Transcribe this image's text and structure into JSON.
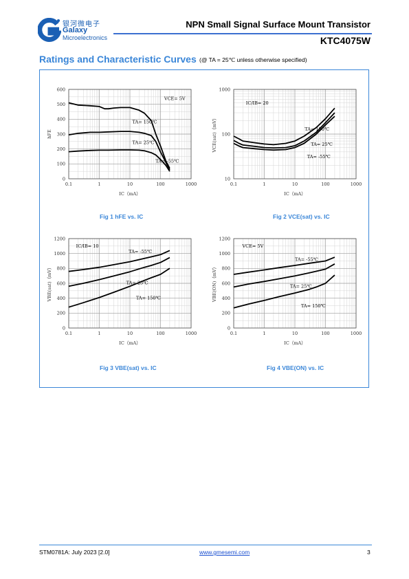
{
  "header": {
    "logo_cn": "银河微电子",
    "logo_en1": "Galaxy",
    "logo_en2": "Microelectronics",
    "doc_title": "NPN Small Signal Surface Mount Transistor",
    "part_no": "KTC4075W"
  },
  "section": {
    "title": "Ratings and Characteristic Curves",
    "condition": "(@ TA = 25℃ unless otherwise specified)"
  },
  "colors": {
    "accent": "#3a86d8",
    "curve": "#000000",
    "grid": "#d4d4d4"
  },
  "chart_data": [
    {
      "type": "line",
      "caption": "Fig 1   hFE vs. IC",
      "xlabel": "IC（mA）",
      "ylabel": "hFE",
      "xscale": "log",
      "xlim": [
        0.1,
        1000
      ],
      "ylim": [
        0,
        600
      ],
      "xticks": [
        "0.1",
        "1",
        "10",
        "100",
        "1000"
      ],
      "yticks": [
        "0",
        "100",
        "200",
        "300",
        "400",
        "500",
        "600"
      ],
      "annotations": [
        "VCE= 5V",
        "TA= 150℃",
        "TA= 25℃",
        "TA= -55℃"
      ],
      "series": [
        {
          "name": "TA= 150℃",
          "x": [
            0.1,
            0.2,
            0.5,
            1,
            1.5,
            2,
            3,
            5,
            10,
            20,
            30,
            50,
            70,
            100,
            150,
            200
          ],
          "y": [
            510,
            495,
            490,
            485,
            470,
            470,
            475,
            478,
            478,
            460,
            440,
            390,
            300,
            220,
            120,
            70
          ]
        },
        {
          "name": "TA= 25℃",
          "x": [
            0.1,
            0.2,
            0.5,
            1,
            2,
            5,
            10,
            20,
            30,
            50,
            70,
            100,
            150,
            200
          ],
          "y": [
            295,
            305,
            312,
            312,
            315,
            318,
            318,
            312,
            305,
            290,
            250,
            180,
            110,
            60
          ]
        },
        {
          "name": "TA= -55℃",
          "x": [
            0.1,
            0.2,
            0.5,
            1,
            2,
            5,
            10,
            20,
            30,
            50,
            70,
            100,
            150,
            200
          ],
          "y": [
            182,
            186,
            190,
            192,
            192,
            194,
            194,
            192,
            188,
            175,
            160,
            130,
            90,
            50
          ]
        }
      ]
    },
    {
      "type": "line",
      "caption": "Fig 2   VCE(sat) vs. IC",
      "xlabel": "IC（mA）",
      "ylabel": "VCE(sat)（mV）",
      "xscale": "log",
      "yscale": "log",
      "xlim": [
        0.1,
        1000
      ],
      "ylim": [
        10,
        1000
      ],
      "xticks": [
        "0.1",
        "1",
        "10",
        "100",
        "1000"
      ],
      "yticks": [
        "10",
        "100",
        "1000"
      ],
      "annotations": [
        "IC/IB= 20",
        "TA= 150℃",
        "TA= 25℃",
        "TA= -55℃"
      ],
      "series": [
        {
          "name": "TA= 150℃",
          "x": [
            0.1,
            0.15,
            0.2,
            0.5,
            1,
            2,
            5,
            10,
            20,
            50,
            100,
            200
          ],
          "y": [
            90,
            78,
            70,
            64,
            60,
            58,
            62,
            70,
            90,
            140,
            220,
            380
          ]
        },
        {
          "name": "TA= 25℃",
          "x": [
            0.1,
            0.15,
            0.2,
            0.5,
            1,
            2,
            5,
            10,
            20,
            50,
            100,
            200
          ],
          "y": [
            72,
            62,
            57,
            53,
            50,
            49,
            50,
            55,
            70,
            110,
            180,
            300
          ]
        },
        {
          "name": "TA= -55℃",
          "x": [
            0.1,
            0.15,
            0.2,
            0.5,
            1,
            2,
            5,
            10,
            20,
            50,
            100,
            200
          ],
          "y": [
            62,
            54,
            50,
            47,
            45,
            44,
            45,
            50,
            62,
            100,
            160,
            250
          ]
        }
      ]
    },
    {
      "type": "line",
      "caption": "Fig 3   VBE(sat) vs. IC",
      "xlabel": "IC（mA）",
      "ylabel": "VBE(sat)（mV）",
      "xscale": "log",
      "xlim": [
        0.1,
        1000
      ],
      "ylim": [
        0,
        1200
      ],
      "xticks": [
        "0.1",
        "1",
        "10",
        "100",
        "1000"
      ],
      "yticks": [
        "0",
        "200",
        "400",
        "600",
        "800",
        "1000",
        "1200"
      ],
      "annotations": [
        "IC/IB= 10",
        "TA= -55℃",
        "TA= 25℃",
        "TA= 150℃"
      ],
      "series": [
        {
          "name": "TA= -55℃",
          "x": [
            0.1,
            0.3,
            1,
            3,
            10,
            30,
            50,
            100,
            200
          ],
          "y": [
            760,
            785,
            815,
            850,
            890,
            935,
            955,
            985,
            1040
          ]
        },
        {
          "name": "TA= 25℃",
          "x": [
            0.1,
            0.3,
            1,
            3,
            10,
            30,
            50,
            100,
            200
          ],
          "y": [
            560,
            600,
            650,
            700,
            755,
            815,
            840,
            880,
            945
          ]
        },
        {
          "name": "TA= 150℃",
          "x": [
            0.1,
            0.3,
            1,
            3,
            10,
            30,
            50,
            100,
            200
          ],
          "y": [
            280,
            340,
            410,
            480,
            560,
            640,
            675,
            720,
            800
          ]
        }
      ]
    },
    {
      "type": "line",
      "caption": "Fig 4   VBE(ON) vs. IC",
      "xlabel": "IC（mA）",
      "ylabel": "VBE(ON)（mV）",
      "xscale": "log",
      "xlim": [
        0.1,
        1000
      ],
      "ylim": [
        0,
        1200
      ],
      "xticks": [
        "0.1",
        "1",
        "10",
        "100",
        "1000"
      ],
      "yticks": [
        "0",
        "200",
        "400",
        "600",
        "800",
        "1000",
        "1200"
      ],
      "annotations": [
        "VCE= 5V",
        "TA= -55℃",
        "TA= 25℃",
        "TA= 150℃"
      ],
      "series": [
        {
          "name": "TA= -55℃",
          "x": [
            0.1,
            0.3,
            1,
            3,
            10,
            30,
            100,
            200
          ],
          "y": [
            720,
            750,
            780,
            810,
            840,
            870,
            900,
            950
          ]
        },
        {
          "name": "TA= 25℃",
          "x": [
            0.1,
            0.3,
            1,
            3,
            10,
            30,
            100,
            200
          ],
          "y": [
            550,
            590,
            625,
            660,
            700,
            740,
            790,
            860
          ]
        },
        {
          "name": "TA= 150℃",
          "x": [
            0.1,
            0.3,
            1,
            3,
            10,
            30,
            50,
            100,
            200
          ],
          "y": [
            270,
            320,
            370,
            420,
            470,
            520,
            550,
            600,
            710
          ]
        }
      ]
    }
  ],
  "footer": {
    "doc_id": "STM0781A: July 2023 [2.0]",
    "url": "www.gmesemi.com",
    "page": "3"
  }
}
